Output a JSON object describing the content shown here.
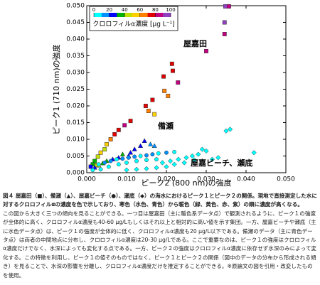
{
  "chart_data": {
    "type": "scatter",
    "xlabel": "ピーク2 (800 nm)の強度",
    "ylabel": "ピーク1 (710 nm)の強度",
    "xlim": [
      0,
      0.05
    ],
    "ylim": [
      0,
      0.05
    ],
    "xticks": [
      {
        "value": 0,
        "label": "0.000"
      },
      {
        "value": 0.01,
        "label": "0.010"
      },
      {
        "value": 0.02,
        "label": "0.020"
      },
      {
        "value": 0.03,
        "label": "0.030"
      },
      {
        "value": 0.04,
        "label": "0.040"
      },
      {
        "value": 0.05,
        "label": "0.050"
      }
    ],
    "yticks": [
      {
        "value": 0,
        "label": "0.000"
      },
      {
        "value": 0.005,
        "label": "0.005"
      },
      {
        "value": 0.01,
        "label": "0.010"
      },
      {
        "value": 0.015,
        "label": "0.015"
      },
      {
        "value": 0.02,
        "label": "0.020"
      },
      {
        "value": 0.025,
        "label": "0.025"
      },
      {
        "value": 0.03,
        "label": "0.030"
      },
      {
        "value": 0.035,
        "label": "0.035"
      },
      {
        "value": 0.04,
        "label": "0.040"
      },
      {
        "value": 0.045,
        "label": "0.045"
      },
      {
        "value": 0.05,
        "label": "0.050"
      }
    ],
    "annotations": [
      "屋嘉田",
      "備瀬",
      "屋嘉ビーチ、瀬底"
    ],
    "colorbar": {
      "label": "クロロフィルα濃度 [μg L⁻¹]",
      "lim": [
        0,
        100
      ],
      "ticks": [
        0,
        20,
        40,
        60,
        80,
        100
      ],
      "colors": [
        "#00ffff",
        "#0090ff",
        "#0000ff",
        "#00b000",
        "#c0e000",
        "#ffd000",
        "#ff8000",
        "#e00000",
        "#c00080",
        "#9040c0"
      ]
    },
    "series": [
      {
        "marker": "square",
        "x": [
          0.0348,
          0.0357,
          0.0346,
          0.0346,
          0.03,
          0.0214,
          0.0216,
          0.0193,
          0.0229,
          0.0195,
          0.0204,
          0.0165,
          0.0148,
          0.0155,
          0.017,
          0.011,
          0.0095,
          0.008,
          0.007,
          0.006,
          0.005,
          0.0045,
          0.0035,
          0.0028,
          0.002,
          0.0015,
          0.001,
          0.0025
        ],
        "values": [
          0.0498,
          0.0498,
          0.045,
          0.0415,
          0.0364,
          0.0326,
          0.0305,
          0.0288,
          0.027,
          0.0245,
          0.023,
          0.0218,
          0.02,
          0.0185,
          0.0175,
          0.0155,
          0.0142,
          0.0128,
          0.0115,
          0.01,
          0.0085,
          0.007,
          0.006,
          0.0048,
          0.0035,
          0.0025,
          0.0018,
          0.0022
        ],
        "c": [
          95,
          85,
          90,
          88,
          80,
          75,
          78,
          70,
          80,
          60,
          65,
          70,
          75,
          60,
          55,
          70,
          80,
          75,
          70,
          60,
          55,
          45,
          50,
          40,
          35,
          30,
          25,
          45
        ]
      },
      {
        "marker": "triangle",
        "x": [
          0.0145,
          0.0135,
          0.016,
          0.012,
          0.011,
          0.009,
          0.008,
          0.0065,
          0.005,
          0.004,
          0.003,
          0.002,
          0.0105,
          0.017
        ],
        "values": [
          0.0095,
          0.008,
          0.0085,
          0.007,
          0.006,
          0.0055,
          0.0045,
          0.004,
          0.0035,
          0.0028,
          0.0022,
          0.0015,
          0.005,
          0.008
        ],
        "c": [
          20,
          22,
          18,
          25,
          28,
          30,
          25,
          22,
          30,
          35,
          40,
          28,
          20,
          15
        ]
      },
      {
        "marker": "circle",
        "x": [
          0.003,
          0.0045,
          0.006,
          0.0075,
          0.009,
          0.0105,
          0.012,
          0.0135,
          0.015,
          0.0165,
          0.018,
          0.02,
          0.0055,
          0.008,
          0.01,
          0.0125,
          0.015,
          0.0175,
          0.0035,
          0.0015,
          0.022
        ],
        "values": [
          0.0025,
          0.003,
          0.0035,
          0.004,
          0.0042,
          0.0045,
          0.0048,
          0.005,
          0.0052,
          0.0055,
          0.0058,
          0.006,
          0.0018,
          0.0025,
          0.003,
          0.0035,
          0.0038,
          0.004,
          0.001,
          0.0008,
          0.0062
        ],
        "c": [
          8,
          10,
          12,
          8,
          10,
          15,
          10,
          8,
          12,
          10,
          8,
          10,
          5,
          6,
          5,
          6,
          8,
          5,
          5,
          8,
          6
        ]
      },
      {
        "marker": "diamond",
        "x": [
          0.019,
          0.021,
          0.023,
          0.025,
          0.0265,
          0.028,
          0.03,
          0.0245,
          0.027,
          0.022,
          0.02,
          0.0175,
          0.015,
          0.0125,
          0.01,
          0.035,
          0.036,
          0.033,
          0.042,
          0.029,
          0.0315
        ],
        "values": [
          0.003,
          0.0035,
          0.004,
          0.0045,
          0.005,
          0.0055,
          0.0065,
          0.003,
          0.0038,
          0.0025,
          0.0018,
          0.0015,
          0.0012,
          0.001,
          0.0008,
          0.0125,
          0.013,
          0.0045,
          0.006,
          0.007,
          0.004
        ],
        "c": [
          5,
          4,
          6,
          5,
          4,
          5,
          6,
          4,
          5,
          5,
          4,
          5,
          6,
          5,
          5,
          6,
          5,
          4,
          5,
          8,
          4
        ]
      }
    ]
  },
  "caption": {
    "title": "図４ 屋嘉田（■）、備瀬（▲）、屋嘉ビーチ（●）、瀬底（◆）の海水におけるピーク１とピーク２の関係。現地で直接測定した水に対するクロロフィルαの濃度を色で示しており、寒色（水色、青色）から暖色（緑、黄色、赤、紫）の順に濃度が高くなる。",
    "body": "この図から大きく三つの傾向を見ることができる。一つ目は屋嘉田（主に暖色系データ点）で観測されるように、ピーク１の強度が全体的に高く、クロロフィルα濃度も40-60 μg/Lもしくはそれ以上と相対的に高い値を示す集団。一方、屋嘉ビーチや瀬底（主に水色データ点）は、ピーク１の強度が全体的に低く、クロロフィルα濃度も20 μg/L以下である。備瀬のデータ（主に青色データ点）は両者の中間地点に分布し、クロロフィルα濃度は20-30 μg/Lである。ここで重要なのは、ピーク１の強度はクロロフィルα濃度だけでなく、水深によっても変化する点である。一方、ピーク２の強度はクロロフィルα濃度に依存せず水深のみによって変化する。この特徴を利用し、ピーク１の値そのものではなく、ピーク１とピーク２の関係（図中のデータの分布から形成される傾き）を見ることで、水深の影響を分離し、クロロフィルα濃度だけを推定することができる。※原論文の図を引用・改変したものを使用。"
  }
}
